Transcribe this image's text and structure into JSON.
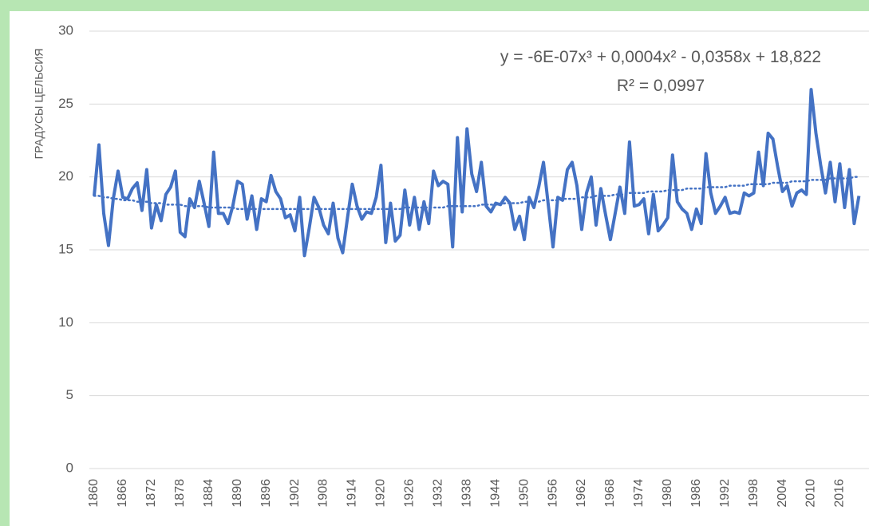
{
  "chart_data": {
    "type": "line",
    "y_label": "ГРАДУСЫ ЦЕЛЬСИЯ",
    "annotations": [
      "y = -6E-07x³ + 0,0004x² - 0,0358x + 18,822",
      "R² = 0,0997"
    ],
    "categories": [
      "1860",
      null,
      null,
      null,
      null,
      null,
      "1866",
      null,
      null,
      null,
      null,
      null,
      "1872",
      null,
      null,
      null,
      null,
      null,
      "1878",
      null,
      null,
      null,
      null,
      null,
      "1884",
      null,
      null,
      null,
      null,
      null,
      "1890",
      null,
      null,
      null,
      null,
      null,
      "1896",
      null,
      null,
      null,
      null,
      null,
      "1902",
      null,
      null,
      null,
      null,
      null,
      "1908",
      null,
      null,
      null,
      null,
      null,
      "1914",
      null,
      null,
      null,
      null,
      null,
      "1920",
      null,
      null,
      null,
      null,
      null,
      "1926",
      null,
      null,
      null,
      null,
      null,
      "1932",
      null,
      null,
      null,
      null,
      null,
      "1938",
      null,
      null,
      null,
      null,
      null,
      "1944",
      null,
      null,
      null,
      null,
      null,
      "1950",
      null,
      null,
      null,
      null,
      null,
      "1956",
      null,
      null,
      null,
      null,
      null,
      "1962",
      null,
      null,
      null,
      null,
      null,
      "1968",
      null,
      null,
      null,
      null,
      null,
      "1974",
      null,
      null,
      null,
      null,
      null,
      "1980",
      null,
      null,
      null,
      null,
      null,
      "1986",
      null,
      null,
      null,
      null,
      null,
      "1992",
      null,
      null,
      null,
      null,
      null,
      "1998",
      null,
      null,
      null,
      null,
      null,
      "2004",
      null,
      null,
      null,
      null,
      null,
      "2010",
      null,
      null,
      null,
      null,
      null,
      "2016",
      null,
      null,
      null,
      null
    ],
    "values": [
      18.7,
      22.2,
      17.5,
      15.3,
      18.5,
      20.4,
      18.6,
      18.5,
      19.2,
      19.6,
      17.7,
      20.5,
      16.5,
      18.1,
      17.0,
      18.8,
      19.3,
      20.4,
      16.2,
      15.9,
      18.5,
      17.9,
      19.7,
      18.2,
      16.6,
      21.7,
      17.5,
      17.5,
      16.8,
      18.0,
      19.7,
      19.5,
      17.1,
      18.7,
      16.4,
      18.5,
      18.3,
      20.1,
      19.0,
      18.5,
      17.2,
      17.4,
      16.3,
      18.6,
      14.6,
      16.5,
      18.6,
      17.9,
      16.7,
      16.1,
      18.2,
      15.8,
      14.8,
      17.2,
      19.5,
      18.0,
      17.1,
      17.6,
      17.5,
      18.6,
      20.8,
      15.5,
      18.2,
      15.6,
      16.0,
      19.1,
      16.7,
      18.6,
      16.4,
      18.3,
      16.8,
      20.4,
      19.4,
      19.7,
      19.5,
      15.2,
      22.7,
      17.6,
      23.3,
      20.2,
      19.0,
      21.0,
      18.0,
      17.6,
      18.2,
      18.1,
      18.6,
      18.2,
      16.4,
      17.3,
      15.7,
      18.6,
      17.9,
      19.3,
      21.0,
      18.1,
      15.2,
      18.6,
      18.4,
      20.5,
      21.0,
      19.4,
      16.4,
      18.9,
      20.0,
      16.7,
      19.2,
      17.4,
      15.7,
      17.5,
      19.3,
      17.5,
      22.4,
      18.0,
      18.1,
      18.5,
      16.1,
      18.8,
      16.3,
      16.7,
      17.2,
      21.5,
      18.3,
      17.8,
      17.5,
      16.4,
      17.8,
      16.8,
      21.6,
      18.9,
      17.5,
      18.0,
      18.6,
      17.5,
      17.6,
      17.5,
      18.9,
      18.7,
      18.9,
      21.7,
      19.4,
      23.0,
      22.6,
      20.7,
      19.0,
      19.4,
      18.0,
      18.9,
      19.1,
      18.8,
      26.0,
      23.0,
      20.8,
      18.9,
      21.0,
      18.3,
      20.9,
      17.9,
      20.5,
      16.8,
      18.7
    ],
    "color": "#4472c4",
    "trendline": {
      "color": "#4472c4",
      "values": [
        18.7,
        18.7,
        18.6,
        18.6,
        18.5,
        18.5,
        18.4,
        18.4,
        18.4,
        18.3,
        18.3,
        18.3,
        18.2,
        18.2,
        18.2,
        18.1,
        18.1,
        18.1,
        18.1,
        18.0,
        18.0,
        18.0,
        18.0,
        18.0,
        17.9,
        17.9,
        17.9,
        17.9,
        17.9,
        17.9,
        17.8,
        17.8,
        17.8,
        17.8,
        17.8,
        17.8,
        17.8,
        17.8,
        17.8,
        17.8,
        17.8,
        17.8,
        17.8,
        17.8,
        17.8,
        17.8,
        17.8,
        17.8,
        17.8,
        17.8,
        17.8,
        17.8,
        17.8,
        17.8,
        17.8,
        17.8,
        17.8,
        17.8,
        17.8,
        17.8,
        17.8,
        17.8,
        17.8,
        17.8,
        17.8,
        17.9,
        17.9,
        17.9,
        17.9,
        17.9,
        17.9,
        17.9,
        17.9,
        17.9,
        18.0,
        18.0,
        18.0,
        18.0,
        18.0,
        18.0,
        18.0,
        18.1,
        18.1,
        18.1,
        18.1,
        18.1,
        18.2,
        18.2,
        18.2,
        18.2,
        18.3,
        18.3,
        18.3,
        18.3,
        18.4,
        18.4,
        18.4,
        18.4,
        18.5,
        18.5,
        18.5,
        18.5,
        18.6,
        18.6,
        18.6,
        18.7,
        18.7,
        18.7,
        18.7,
        18.8,
        18.8,
        18.8,
        18.9,
        18.9,
        18.9,
        18.9,
        19.0,
        19.0,
        19.0,
        19.0,
        19.1,
        19.1,
        19.1,
        19.1,
        19.2,
        19.2,
        19.2,
        19.2,
        19.3,
        19.3,
        19.3,
        19.3,
        19.3,
        19.4,
        19.4,
        19.4,
        19.4,
        19.5,
        19.5,
        19.5,
        19.5,
        19.5,
        19.6,
        19.6,
        19.6,
        19.6,
        19.7,
        19.7,
        19.7,
        19.7,
        19.8,
        19.8,
        19.8,
        19.8,
        19.9,
        19.9,
        19.9,
        19.9,
        19.9,
        20.0,
        20.0
      ]
    },
    "ylim": [
      0,
      30
    ],
    "yticks": [
      0,
      5,
      10,
      15,
      20,
      25,
      30
    ],
    "grid": true
  }
}
